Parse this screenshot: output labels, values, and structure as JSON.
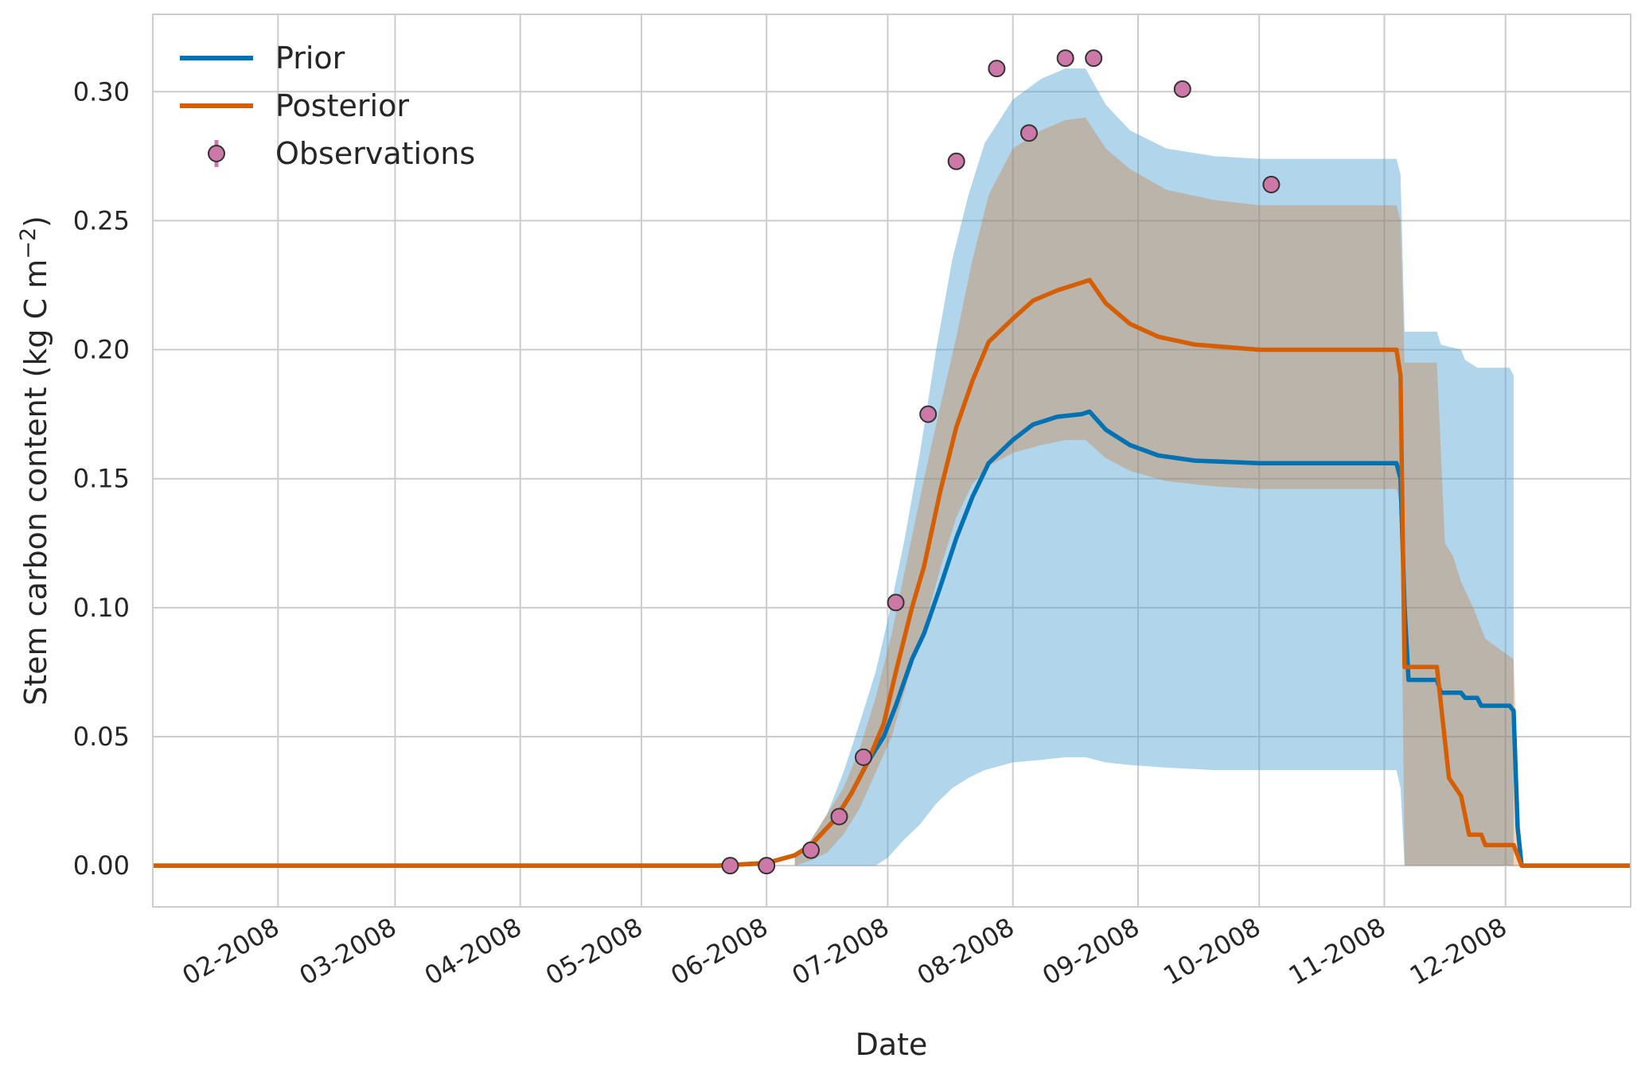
{
  "chart_data": {
    "type": "line",
    "xlabel": "Date",
    "ylabel": "Stem carbon content (kg C m",
    "ylabel_sup": "−2",
    "ylabel_suffix": ")",
    "xlim": [
      "2008-01-01",
      "2009-01-01"
    ],
    "ylim": [
      -0.016,
      0.33
    ],
    "x_ticks": [
      "2008-02-01",
      "2008-03-01",
      "2008-04-01",
      "2008-05-01",
      "2008-06-01",
      "2008-07-01",
      "2008-08-01",
      "2008-09-01",
      "2008-10-01",
      "2008-11-01",
      "2008-12-01"
    ],
    "x_tick_labels": [
      "02-2008",
      "03-2008",
      "04-2008",
      "05-2008",
      "06-2008",
      "07-2008",
      "08-2008",
      "09-2008",
      "10-2008",
      "11-2008",
      "12-2008"
    ],
    "y_ticks": [
      0.0,
      0.05,
      0.1,
      0.15,
      0.2,
      0.25,
      0.3
    ],
    "y_tick_labels": [
      "0.00",
      "0.05",
      "0.10",
      "0.15",
      "0.20",
      "0.25",
      "0.30"
    ],
    "grid": true,
    "legend_position": "top-left",
    "series": [
      {
        "name": "Prior",
        "color": "#0072b2",
        "points": [
          [
            "2008-01-01",
            0
          ],
          [
            "2008-05-20",
            0
          ],
          [
            "2008-06-01",
            0.001
          ],
          [
            "2008-06-08",
            0.004
          ],
          [
            "2008-06-12",
            0.008
          ],
          [
            "2008-06-18",
            0.018
          ],
          [
            "2008-06-22",
            0.028
          ],
          [
            "2008-06-26",
            0.04
          ],
          [
            "2008-06-30",
            0.05
          ],
          [
            "2008-07-03",
            0.062
          ],
          [
            "2008-07-07",
            0.08
          ],
          [
            "2008-07-10",
            0.09
          ],
          [
            "2008-07-14",
            0.108
          ],
          [
            "2008-07-18",
            0.127
          ],
          [
            "2008-07-22",
            0.143
          ],
          [
            "2008-07-26",
            0.156
          ],
          [
            "2008-08-01",
            0.165
          ],
          [
            "2008-08-06",
            0.171
          ],
          [
            "2008-08-12",
            0.174
          ],
          [
            "2008-08-18",
            0.175
          ],
          [
            "2008-08-20",
            0.176
          ],
          [
            "2008-08-24",
            0.169
          ],
          [
            "2008-08-30",
            0.163
          ],
          [
            "2008-09-06",
            0.159
          ],
          [
            "2008-09-15",
            0.157
          ],
          [
            "2008-10-01",
            0.156
          ],
          [
            "2008-11-04",
            0.156
          ],
          [
            "2008-11-05",
            0.15
          ],
          [
            "2008-11-06",
            0.1
          ],
          [
            "2008-11-07",
            0.072
          ],
          [
            "2008-11-14",
            0.072
          ],
          [
            "2008-11-15",
            0.067
          ],
          [
            "2008-11-20",
            0.067
          ],
          [
            "2008-11-21",
            0.065
          ],
          [
            "2008-11-24",
            0.065
          ],
          [
            "2008-11-25",
            0.062
          ],
          [
            "2008-12-02",
            0.062
          ],
          [
            "2008-12-03",
            0.06
          ],
          [
            "2008-12-04",
            0.015
          ],
          [
            "2008-12-05",
            0
          ],
          [
            "2009-01-01",
            0
          ]
        ],
        "band": [
          [
            "2008-06-08",
            0,
            0.004
          ],
          [
            "2008-06-12",
            0,
            0.01
          ],
          [
            "2008-06-16",
            0,
            0.02
          ],
          [
            "2008-06-20",
            0,
            0.036
          ],
          [
            "2008-06-24",
            0,
            0.055
          ],
          [
            "2008-06-28",
            0,
            0.075
          ],
          [
            "2008-07-01",
            0.003,
            0.095
          ],
          [
            "2008-07-05",
            0.01,
            0.125
          ],
          [
            "2008-07-09",
            0.016,
            0.16
          ],
          [
            "2008-07-13",
            0.024,
            0.2
          ],
          [
            "2008-07-17",
            0.03,
            0.235
          ],
          [
            "2008-07-21",
            0.034,
            0.26
          ],
          [
            "2008-07-25",
            0.037,
            0.28
          ],
          [
            "2008-08-01",
            0.04,
            0.297
          ],
          [
            "2008-08-08",
            0.041,
            0.305
          ],
          [
            "2008-08-14",
            0.042,
            0.309
          ],
          [
            "2008-08-19",
            0.042,
            0.309
          ],
          [
            "2008-08-24",
            0.04,
            0.295
          ],
          [
            "2008-08-30",
            0.039,
            0.285
          ],
          [
            "2008-09-08",
            0.038,
            0.278
          ],
          [
            "2008-09-20",
            0.037,
            0.275
          ],
          [
            "2008-10-01",
            0.037,
            0.274
          ],
          [
            "2008-11-04",
            0.037,
            0.274
          ],
          [
            "2008-11-05",
            0.03,
            0.268
          ],
          [
            "2008-11-06",
            0,
            0.207
          ],
          [
            "2008-11-14",
            0,
            0.207
          ],
          [
            "2008-11-15",
            0,
            0.202
          ],
          [
            "2008-11-20",
            0,
            0.2
          ],
          [
            "2008-11-21",
            0,
            0.196
          ],
          [
            "2008-11-24",
            0,
            0.193
          ],
          [
            "2008-12-02",
            0,
            0.193
          ],
          [
            "2008-12-03",
            0,
            0.19
          ]
        ]
      },
      {
        "name": "Posterior",
        "color": "#d55e00",
        "points": [
          [
            "2008-01-01",
            0
          ],
          [
            "2008-05-20",
            0
          ],
          [
            "2008-06-01",
            0.001
          ],
          [
            "2008-06-08",
            0.004
          ],
          [
            "2008-06-12",
            0.008
          ],
          [
            "2008-06-18",
            0.018
          ],
          [
            "2008-06-22",
            0.028
          ],
          [
            "2008-06-26",
            0.04
          ],
          [
            "2008-06-30",
            0.055
          ],
          [
            "2008-07-03",
            0.075
          ],
          [
            "2008-07-07",
            0.1
          ],
          [
            "2008-07-10",
            0.116
          ],
          [
            "2008-07-14",
            0.145
          ],
          [
            "2008-07-18",
            0.17
          ],
          [
            "2008-07-22",
            0.188
          ],
          [
            "2008-07-26",
            0.203
          ],
          [
            "2008-08-01",
            0.212
          ],
          [
            "2008-08-06",
            0.219
          ],
          [
            "2008-08-12",
            0.223
          ],
          [
            "2008-08-18",
            0.226
          ],
          [
            "2008-08-20",
            0.227
          ],
          [
            "2008-08-24",
            0.218
          ],
          [
            "2008-08-30",
            0.21
          ],
          [
            "2008-09-06",
            0.205
          ],
          [
            "2008-09-15",
            0.202
          ],
          [
            "2008-10-01",
            0.2
          ],
          [
            "2008-11-04",
            0.2
          ],
          [
            "2008-11-05",
            0.19
          ],
          [
            "2008-11-06",
            0.077
          ],
          [
            "2008-11-14",
            0.077
          ],
          [
            "2008-11-17",
            0.034
          ],
          [
            "2008-11-20",
            0.027
          ],
          [
            "2008-11-22",
            0.012
          ],
          [
            "2008-11-25",
            0.012
          ],
          [
            "2008-11-26",
            0.008
          ],
          [
            "2008-12-03",
            0.008
          ],
          [
            "2008-12-05",
            0
          ],
          [
            "2009-01-01",
            0
          ]
        ],
        "band": [
          [
            "2008-06-08",
            0,
            0.004
          ],
          [
            "2008-06-12",
            0.002,
            0.01
          ],
          [
            "2008-06-16",
            0.005,
            0.02
          ],
          [
            "2008-06-20",
            0.012,
            0.03
          ],
          [
            "2008-06-24",
            0.022,
            0.045
          ],
          [
            "2008-06-28",
            0.036,
            0.065
          ],
          [
            "2008-07-02",
            0.05,
            0.09
          ],
          [
            "2008-07-06",
            0.072,
            0.12
          ],
          [
            "2008-07-10",
            0.092,
            0.15
          ],
          [
            "2008-07-14",
            0.115,
            0.178
          ],
          [
            "2008-07-18",
            0.135,
            0.205
          ],
          [
            "2008-07-22",
            0.148,
            0.235
          ],
          [
            "2008-07-26",
            0.155,
            0.26
          ],
          [
            "2008-08-01",
            0.16,
            0.278
          ],
          [
            "2008-08-08",
            0.163,
            0.285
          ],
          [
            "2008-08-14",
            0.165,
            0.289
          ],
          [
            "2008-08-19",
            0.165,
            0.29
          ],
          [
            "2008-08-24",
            0.158,
            0.278
          ],
          [
            "2008-08-30",
            0.153,
            0.27
          ],
          [
            "2008-09-08",
            0.149,
            0.262
          ],
          [
            "2008-09-20",
            0.147,
            0.258
          ],
          [
            "2008-10-01",
            0.146,
            0.256
          ],
          [
            "2008-11-04",
            0.146,
            0.256
          ],
          [
            "2008-11-05",
            0.14,
            0.25
          ],
          [
            "2008-11-06",
            0,
            0.195
          ],
          [
            "2008-11-14",
            0,
            0.195
          ],
          [
            "2008-11-16",
            0,
            0.125
          ],
          [
            "2008-11-18",
            0,
            0.12
          ],
          [
            "2008-11-20",
            0,
            0.11
          ],
          [
            "2008-11-23",
            0,
            0.1
          ],
          [
            "2008-11-26",
            0,
            0.088
          ],
          [
            "2008-12-03",
            0,
            0.08
          ],
          [
            "2008-12-05",
            0,
            0
          ]
        ]
      }
    ],
    "observations": {
      "name": "Observations",
      "color": "#cc79a7",
      "points": [
        [
          "2008-05-23",
          0.0
        ],
        [
          "2008-06-01",
          0.0
        ],
        [
          "2008-06-12",
          0.006
        ],
        [
          "2008-06-19",
          0.019
        ],
        [
          "2008-06-25",
          0.042
        ],
        [
          "2008-07-03",
          0.102
        ],
        [
          "2008-07-11",
          0.175
        ],
        [
          "2008-07-18",
          0.273
        ],
        [
          "2008-07-28",
          0.309
        ],
        [
          "2008-08-05",
          0.284
        ],
        [
          "2008-08-14",
          0.313
        ],
        [
          "2008-08-21",
          0.313
        ],
        [
          "2008-09-12",
          0.301
        ],
        [
          "2008-10-04",
          0.264
        ]
      ]
    }
  }
}
